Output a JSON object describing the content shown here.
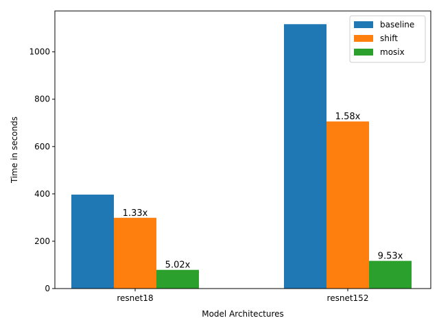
{
  "chart_data": {
    "type": "bar",
    "categories": [
      "resnet18",
      "resnet152"
    ],
    "series": [
      {
        "name": "baseline",
        "values": [
          397,
          1117
        ],
        "labels": [
          "",
          ""
        ],
        "color": "#1f77b4"
      },
      {
        "name": "shift",
        "values": [
          299,
          706
        ],
        "labels": [
          "1.33x",
          "1.58x"
        ],
        "color": "#ff7f0e"
      },
      {
        "name": "mosix",
        "values": [
          79,
          117
        ],
        "labels": [
          "5.02x",
          "9.53x"
        ],
        "color": "#2ca02c"
      }
    ],
    "xlabel": "Model Architectures",
    "ylabel": "Time in seconds",
    "ylim": [
      0,
      1172.85
    ],
    "yticks": [
      0,
      200,
      400,
      600,
      800,
      1000
    ],
    "legend": "top-right",
    "grid": false
  }
}
